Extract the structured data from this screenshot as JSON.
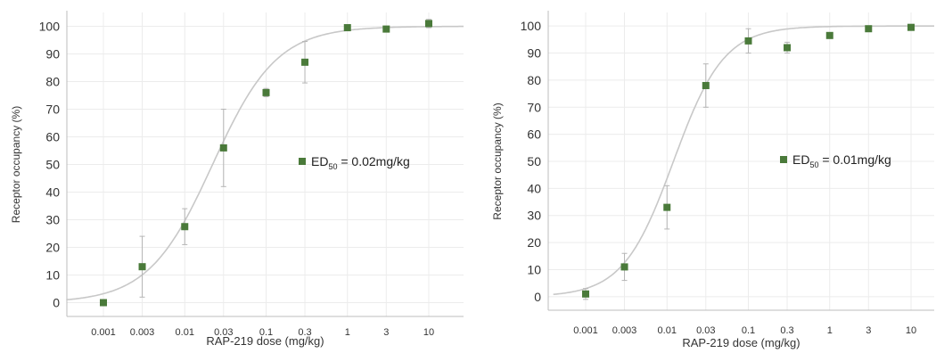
{
  "chart_data": [
    {
      "type": "scatter",
      "x_scale": "log",
      "xlabel": "RAP-219 dose (mg/kg)",
      "ylabel": "Receptor occupancy (%)",
      "x_ticks": [
        0.001,
        0.003,
        0.01,
        0.03,
        0.1,
        0.3,
        1,
        3,
        10
      ],
      "x_tick_labels": [
        "0.001",
        "0.003",
        "0.01",
        "0.03",
        "0.1",
        "0.3",
        "1",
        "3",
        "10"
      ],
      "ylim": [
        -5,
        105
      ],
      "y_ticks": [
        0,
        10,
        20,
        30,
        40,
        50,
        60,
        70,
        80,
        90,
        100
      ],
      "y_tick_labels": [
        "0",
        "10",
        "20",
        "30",
        "40",
        "50",
        "60",
        "70",
        "80",
        "90",
        "100"
      ],
      "grid": true,
      "marker_color": "#4a7a3a",
      "curve_color": "#c8c8c8",
      "legend": {
        "prefix": "ED",
        "sub": "50",
        "suffix": " = 0.02mg/kg",
        "placement": "center-right"
      },
      "points": [
        {
          "x": 0.001,
          "y": 0,
          "err": 0
        },
        {
          "x": 0.003,
          "y": 13,
          "err": 11
        },
        {
          "x": 0.01,
          "y": 27.5,
          "err": 6.5
        },
        {
          "x": 0.03,
          "y": 56,
          "err": 14
        },
        {
          "x": 0.1,
          "y": 76,
          "err": 1.5
        },
        {
          "x": 0.3,
          "y": 87,
          "err": 7.5
        },
        {
          "x": 1,
          "y": 99.5,
          "err": 0
        },
        {
          "x": 3,
          "y": 99,
          "err": 0
        },
        {
          "x": 10,
          "y": 101,
          "err": 1.5
        }
      ],
      "fit_curve": {
        "model": "hill",
        "bottom": 0,
        "top": 100,
        "ed50": 0.022,
        "hill": 1.1,
        "x_range": [
          0.00033,
          30
        ]
      }
    },
    {
      "type": "scatter",
      "x_scale": "log",
      "xlabel": "RAP-219 dose (mg/kg)",
      "ylabel": "Receptor occupancy (%)",
      "x_ticks": [
        0.001,
        0.003,
        0.01,
        0.03,
        0.1,
        0.3,
        1,
        3,
        10
      ],
      "x_tick_labels": [
        "0.001",
        "0.003",
        "0.01",
        "0.03",
        "0.1",
        "0.3",
        "1",
        "3",
        "10"
      ],
      "ylim": [
        -5,
        105
      ],
      "y_ticks": [
        0,
        10,
        20,
        30,
        40,
        50,
        60,
        70,
        80,
        90,
        100
      ],
      "y_tick_labels": [
        "0",
        "10",
        "20",
        "30",
        "40",
        "50",
        "60",
        "70",
        "80",
        "90",
        "100"
      ],
      "grid": true,
      "marker_color": "#4a7a3a",
      "curve_color": "#c8c8c8",
      "legend": {
        "prefix": "ED",
        "sub": "50",
        "suffix": " = 0.01mg/kg",
        "placement": "center-right"
      },
      "points": [
        {
          "x": 0.001,
          "y": 1,
          "err": 2
        },
        {
          "x": 0.003,
          "y": 11,
          "err": 5
        },
        {
          "x": 0.01,
          "y": 33,
          "err": 8
        },
        {
          "x": 0.03,
          "y": 78,
          "err": 8
        },
        {
          "x": 0.1,
          "y": 94.5,
          "err": 4.5
        },
        {
          "x": 0.3,
          "y": 92,
          "err": 2
        },
        {
          "x": 1,
          "y": 96.5,
          "err": 0
        },
        {
          "x": 3,
          "y": 99,
          "err": 0
        },
        {
          "x": 10,
          "y": 99.5,
          "err": 0
        }
      ],
      "fit_curve": {
        "model": "hill",
        "bottom": 0,
        "top": 100,
        "ed50": 0.012,
        "hill": 1.4,
        "x_range": [
          0.0004,
          30
        ]
      }
    }
  ]
}
